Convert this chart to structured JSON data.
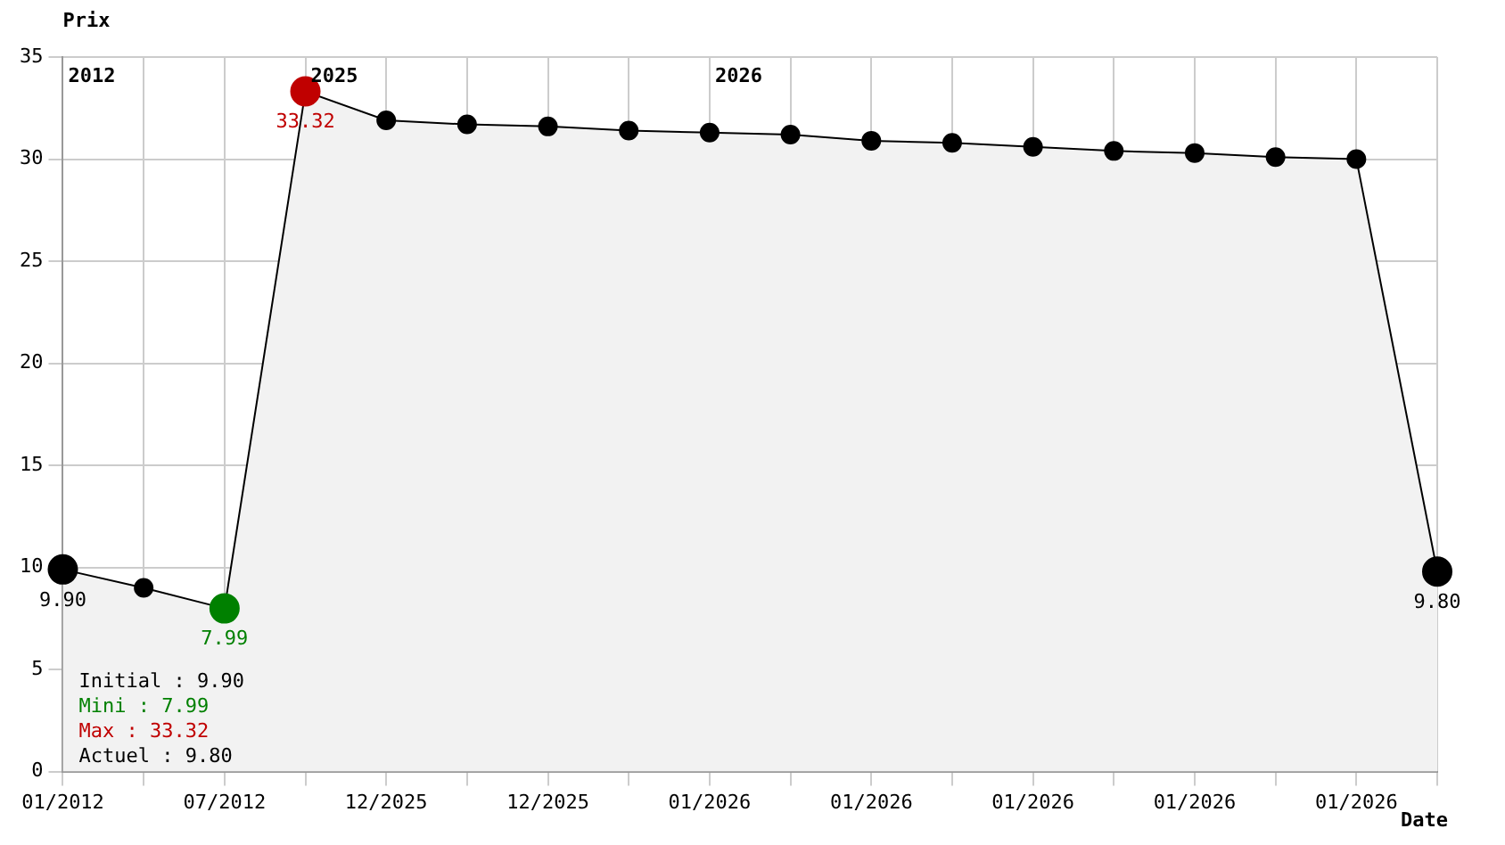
{
  "chart_data": {
    "type": "area",
    "xlabel": "Date",
    "ylabel": "Prix",
    "categories": [
      "01/2012",
      null,
      "07/2012",
      null,
      "12/2025",
      null,
      "12/2025",
      null,
      "01/2026",
      null,
      "01/2026",
      null,
      "01/2026",
      null,
      "01/2026",
      null,
      "01/2026",
      null
    ],
    "series": [
      {
        "color": "#000000",
        "colors": [
          "#000000",
          "#000000",
          "#008000",
          "#c00000",
          "#000000",
          "#000000",
          "#000000",
          "#000000",
          "#000000",
          "#000000",
          "#000000",
          "#000000",
          "#000000",
          "#000000",
          "#000000",
          "#000000",
          "#000000",
          "#000000"
        ],
        "values": [
          9.9,
          9.0,
          7.99,
          33.32,
          31.9,
          31.7,
          31.6,
          31.4,
          31.3,
          31.2,
          30.9,
          30.8,
          30.6,
          30.4,
          30.3,
          30.1,
          30.0,
          9.8
        ],
        "value_labels": [
          "9.90",
          null,
          "7.99",
          "33.32",
          null,
          null,
          null,
          null,
          null,
          null,
          null,
          null,
          null,
          null,
          null,
          null,
          null,
          "9.80"
        ]
      }
    ],
    "ylim": [
      0,
      35
    ],
    "yticks": [
      0,
      5,
      10,
      15,
      20,
      25,
      30,
      35
    ],
    "annotations": [
      "2012",
      "2025",
      "2026",
      "Initial : 9.90",
      "Mini : 7.99",
      "Max : 33.32",
      "Actuel : 9.80"
    ],
    "grid": true,
    "legend": false,
    "marker": "circle"
  }
}
